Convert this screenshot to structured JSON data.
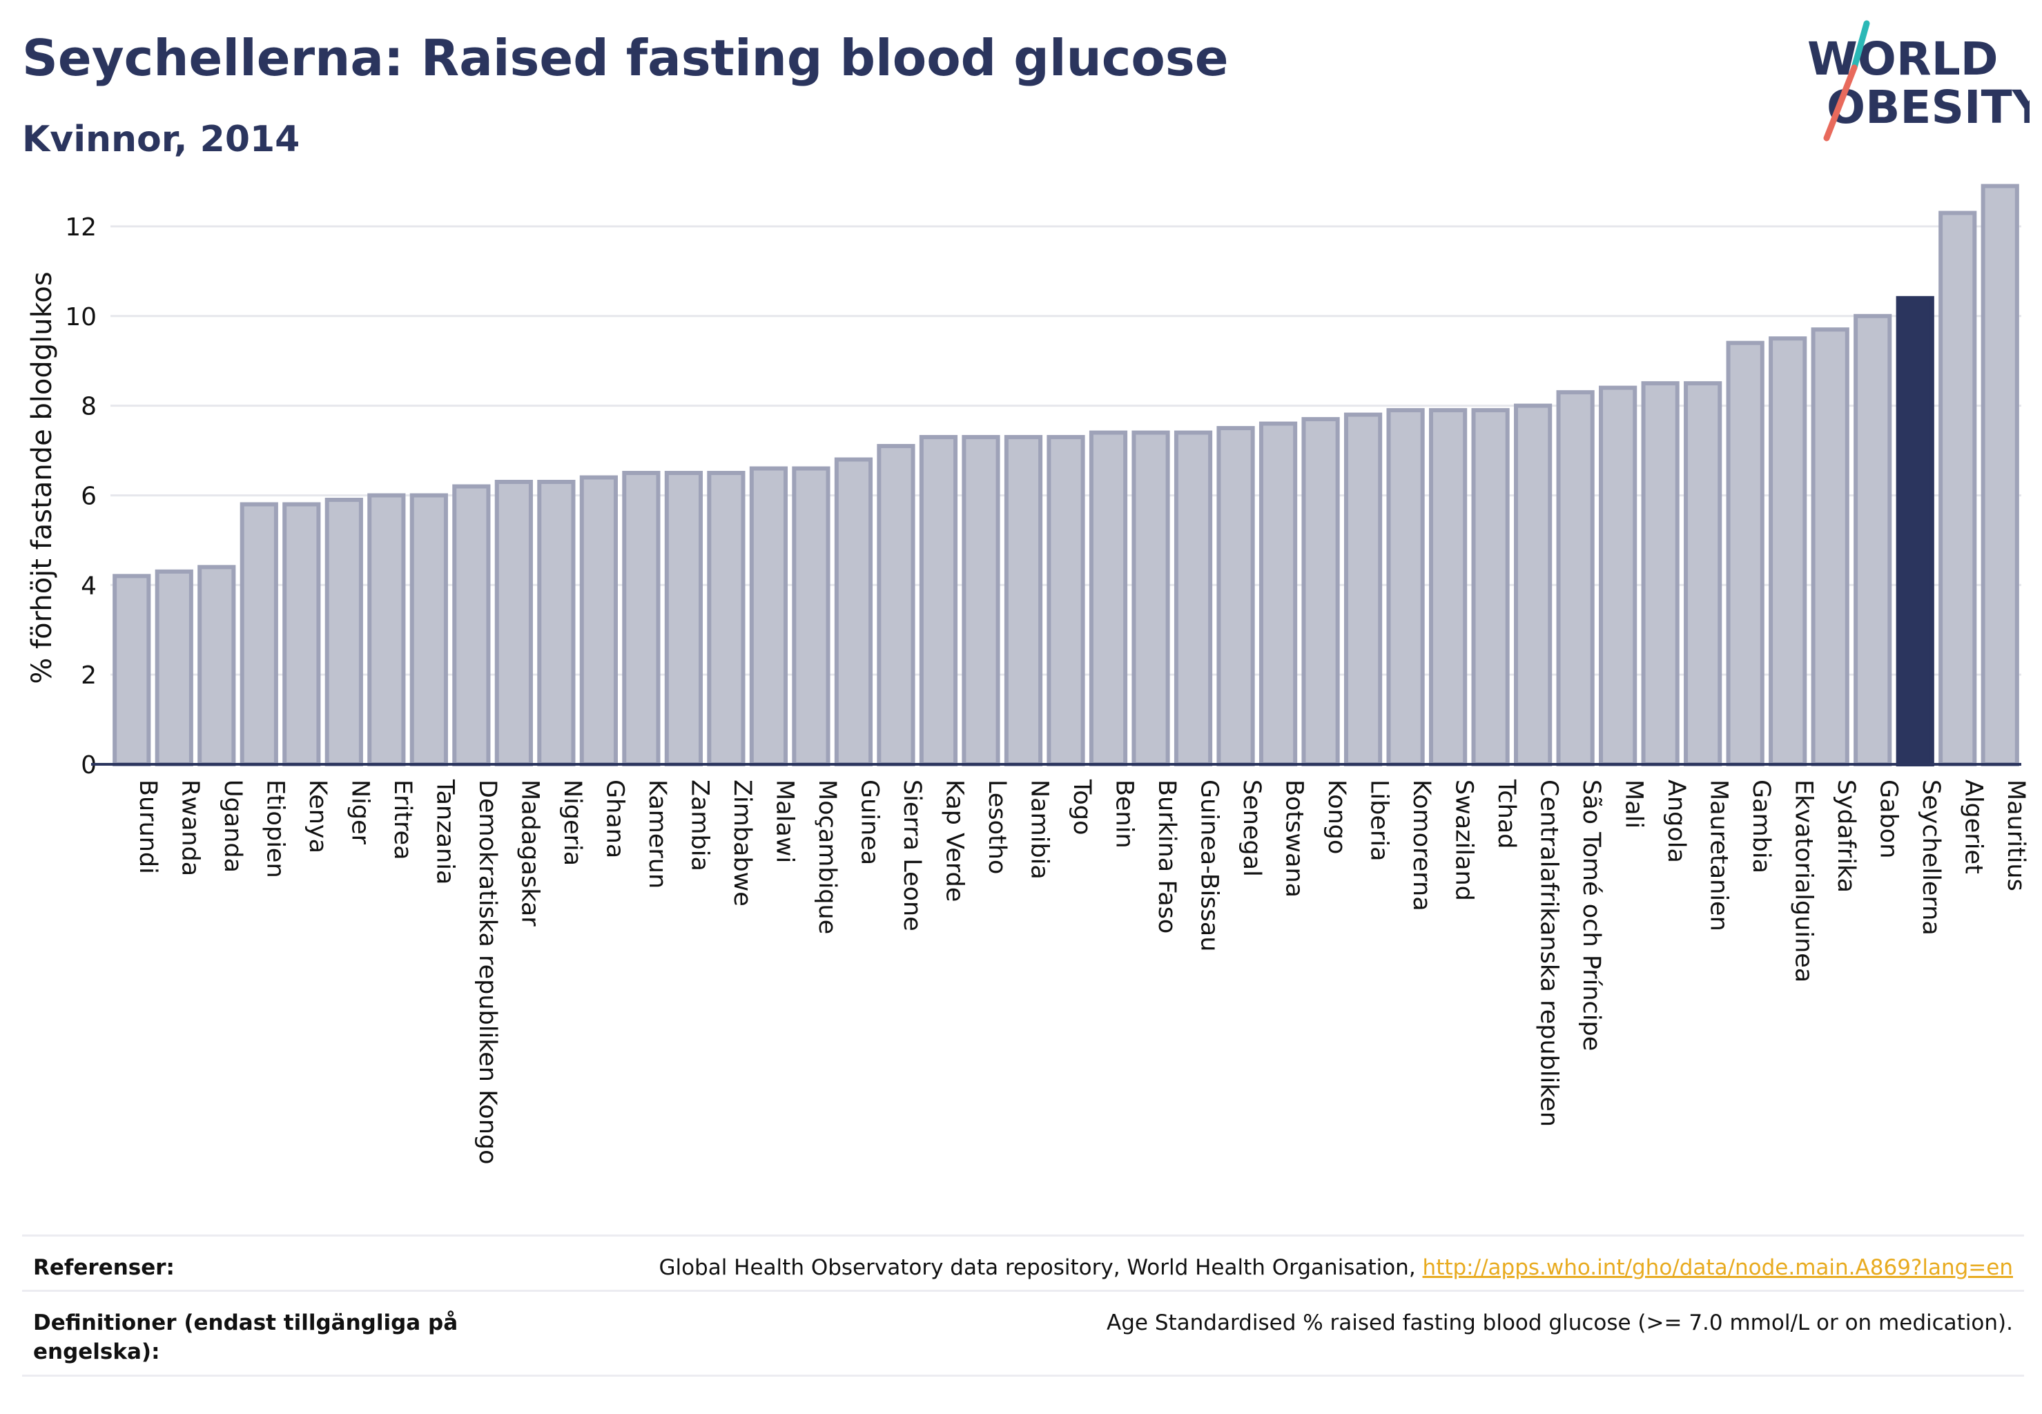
{
  "header": {
    "title": "Seychellerna: Raised fasting blood glucose",
    "subtitle": "Kvinnor, 2014"
  },
  "logo": {
    "line1": "WORLD",
    "line2": "OBESITY",
    "colors": {
      "text": "#2b355e",
      "teal": "#2bb8b6",
      "coral": "#e86a5c"
    }
  },
  "chart_data": {
    "type": "bar",
    "title": "Seychellerna: Raised fasting blood glucose",
    "subtitle": "Kvinnor, 2014",
    "xlabel": "",
    "ylabel": "% förhöjt fastande blodglukos",
    "ylim": [
      0,
      13.2
    ],
    "yticks": [
      0,
      2,
      4,
      6,
      8,
      10,
      12
    ],
    "grid": true,
    "highlight": "Seychellerna",
    "colors": {
      "bar": "#bfc2cf",
      "bar_border": "#9ea2b8",
      "highlight": "#2b355e",
      "grid": "#e6e7ec",
      "axis": "#2b355e"
    },
    "categories": [
      "Burundi",
      "Rwanda",
      "Uganda",
      "Etiopien",
      "Kenya",
      "Niger",
      "Eritrea",
      "Tanzania",
      "Demokratiska republiken Kongo",
      "Madagaskar",
      "Nigeria",
      "Ghana",
      "Kamerun",
      "Zambia",
      "Zimbabwe",
      "Malawi",
      "Moçambique",
      "Guinea",
      "Sierra Leone",
      "Kap Verde",
      "Lesotho",
      "Namibia",
      "Togo",
      "Benin",
      "Burkina Faso",
      "Guinea-Bissau",
      "Senegal",
      "Botswana",
      "Kongo",
      "Liberia",
      "Komorerna",
      "Swaziland",
      "Tchad",
      "Centralafrikanska republiken",
      "São Tomé och Príncipe",
      "Mali",
      "Angola",
      "Mauretanien",
      "Gambia",
      "Ekvatorialguinea",
      "Sydafrika",
      "Gabon",
      "Seychellerna",
      "Algeriet",
      "Mauritius"
    ],
    "values": [
      4.2,
      4.3,
      4.4,
      5.8,
      5.8,
      5.9,
      6.0,
      6.0,
      6.2,
      6.3,
      6.3,
      6.4,
      6.5,
      6.5,
      6.5,
      6.6,
      6.6,
      6.8,
      7.1,
      7.3,
      7.3,
      7.3,
      7.3,
      7.4,
      7.4,
      7.4,
      7.5,
      7.6,
      7.7,
      7.8,
      7.9,
      7.9,
      7.9,
      8.0,
      8.3,
      8.4,
      8.5,
      8.5,
      9.4,
      9.5,
      9.7,
      10.0,
      10.4,
      12.3,
      12.9
    ]
  },
  "footer": {
    "references_label": "Referenser:",
    "references_text": "Global Health Observatory data repository, World Health Organisation, ",
    "references_link": "http://apps.who.int/gho/data/node.main.A869?lang=en",
    "definitions_label": "Definitioner (endast tillgängliga på engelska):",
    "definitions_text": "Age Standardised % raised fasting blood glucose (>= 7.0 mmol/L or on medication)."
  }
}
